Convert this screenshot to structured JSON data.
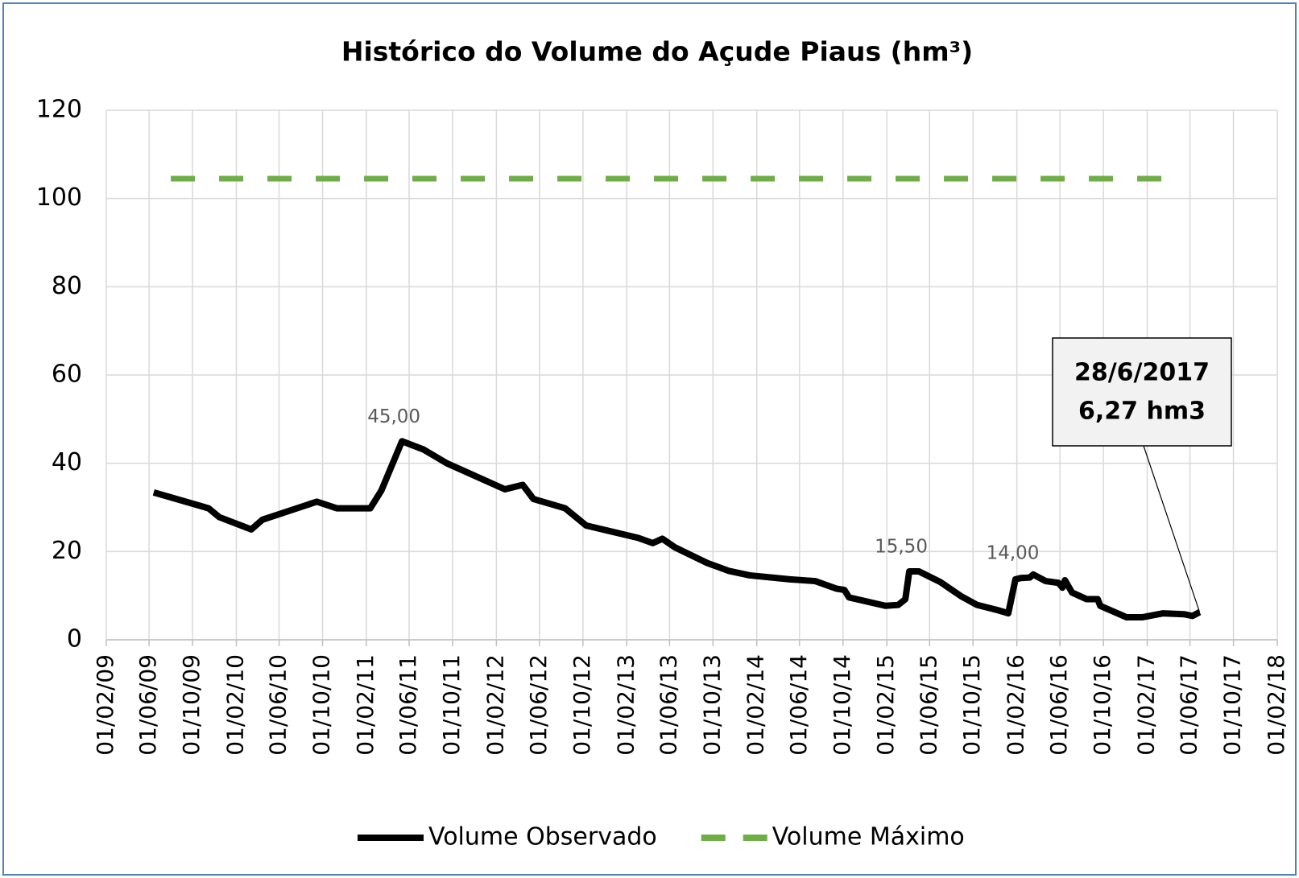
{
  "chart_data": {
    "type": "line",
    "title": "Histórico do Volume do Açude Piaus (hm³)",
    "xlim": [
      "2009-02-01",
      "2018-02-01"
    ],
    "xticks": [
      {
        "value": "2009-02-01",
        "label": "01/02/09"
      },
      {
        "value": "2009-06-01",
        "label": "01/06/09"
      },
      {
        "value": "2009-10-01",
        "label": "01/10/09"
      },
      {
        "value": "2010-02-01",
        "label": "01/02/10"
      },
      {
        "value": "2010-06-01",
        "label": "01/06/10"
      },
      {
        "value": "2010-10-01",
        "label": "01/10/10"
      },
      {
        "value": "2011-02-01",
        "label": "01/02/11"
      },
      {
        "value": "2011-06-01",
        "label": "01/06/11"
      },
      {
        "value": "2011-10-01",
        "label": "01/10/11"
      },
      {
        "value": "2012-02-01",
        "label": "01/02/12"
      },
      {
        "value": "2012-06-01",
        "label": "01/06/12"
      },
      {
        "value": "2012-10-01",
        "label": "01/10/12"
      },
      {
        "value": "2013-02-01",
        "label": "01/02/13"
      },
      {
        "value": "2013-06-01",
        "label": "01/06/13"
      },
      {
        "value": "2013-10-01",
        "label": "01/10/13"
      },
      {
        "value": "2014-02-01",
        "label": "01/02/14"
      },
      {
        "value": "2014-06-01",
        "label": "01/06/14"
      },
      {
        "value": "2014-10-01",
        "label": "01/10/14"
      },
      {
        "value": "2015-02-01",
        "label": "01/02/15"
      },
      {
        "value": "2015-06-01",
        "label": "01/06/15"
      },
      {
        "value": "2015-10-01",
        "label": "01/10/15"
      },
      {
        "value": "2016-02-01",
        "label": "01/02/16"
      },
      {
        "value": "2016-06-01",
        "label": "01/06/16"
      },
      {
        "value": "2016-10-01",
        "label": "01/10/16"
      },
      {
        "value": "2017-02-01",
        "label": "01/02/17"
      },
      {
        "value": "2017-06-01",
        "label": "01/06/17"
      },
      {
        "value": "2017-10-01",
        "label": "01/10/17"
      },
      {
        "value": "2018-02-01",
        "label": "01/02/18"
      }
    ],
    "ylim": [
      0,
      120
    ],
    "yticks": [
      0,
      20,
      40,
      60,
      80,
      100,
      120
    ],
    "grid": true,
    "legend": "bottom",
    "series": [
      {
        "name": "Volume Observado",
        "color": "#000000",
        "dash": false,
        "x": [
          "2009-06-14",
          "2009-11-15",
          "2009-12-15",
          "2010-03-15",
          "2010-04-15",
          "2010-09-15",
          "2010-11-10",
          "2011-02-12",
          "2011-03-15",
          "2011-05-12",
          "2011-07-12",
          "2011-09-15",
          "2012-02-25",
          "2012-04-15",
          "2012-05-15",
          "2012-08-12",
          "2012-10-10",
          "2013-03-05",
          "2013-04-15",
          "2013-05-12",
          "2013-06-15",
          "2013-09-15",
          "2013-11-15",
          "2014-01-12",
          "2014-05-05",
          "2014-07-15",
          "2014-09-12",
          "2014-10-05",
          "2014-10-18",
          "2015-01-28",
          "2015-03-05",
          "2015-03-25",
          "2015-04-05",
          "2015-05-02",
          "2015-07-01",
          "2015-08-28",
          "2015-10-12",
          "2015-12-10",
          "2016-01-08",
          "2016-01-28",
          "2016-02-12",
          "2016-03-08",
          "2016-03-18",
          "2016-04-22",
          "2016-05-28",
          "2016-06-08",
          "2016-06-15",
          "2016-07-05",
          "2016-08-15",
          "2016-09-15",
          "2016-09-22",
          "2016-12-05",
          "2017-01-18",
          "2017-03-18",
          "2017-05-15",
          "2017-06-08",
          "2017-06-28"
        ],
        "values": [
          33.4,
          29.8,
          27.8,
          25,
          27.2,
          31.3,
          29.8,
          29.8,
          33.8,
          45,
          43.1,
          40,
          34.1,
          35.1,
          31.9,
          29.8,
          25.9,
          23.1,
          21.9,
          22.9,
          21,
          17.4,
          15.6,
          14.6,
          13.7,
          13.3,
          11.6,
          11.3,
          9.6,
          7.7,
          7.9,
          9.2,
          15.5,
          15.5,
          13.1,
          9.9,
          7.9,
          6.7,
          6,
          13.7,
          14,
          14.1,
          14.8,
          13.3,
          12.9,
          11.8,
          13.5,
          10.7,
          9.2,
          9.2,
          7.7,
          5.1,
          5.1,
          6,
          5.8,
          5.4,
          6.27
        ],
        "value_labels": [
          null,
          null,
          null,
          null,
          null,
          null,
          null,
          null,
          null,
          "45,00",
          null,
          null,
          null,
          null,
          null,
          null,
          null,
          null,
          null,
          null,
          null,
          null,
          null,
          null,
          null,
          null,
          null,
          null,
          null,
          null,
          null,
          null,
          "15,50",
          null,
          null,
          null,
          null,
          null,
          null,
          null,
          "14,00",
          null,
          null,
          null,
          null,
          null,
          null,
          null,
          null,
          null,
          null,
          null,
          null,
          null,
          null,
          null,
          null
        ]
      },
      {
        "name": "Volume Máximo",
        "color": "#70ad47",
        "dash": true,
        "x": [
          "2009-08-01",
          "2017-05-15"
        ],
        "values": [
          104.5,
          104.5
        ]
      }
    ],
    "callout": {
      "series": 0,
      "point": 56,
      "lines": [
        "28/6/2017",
        "6,27 hm3"
      ]
    }
  }
}
